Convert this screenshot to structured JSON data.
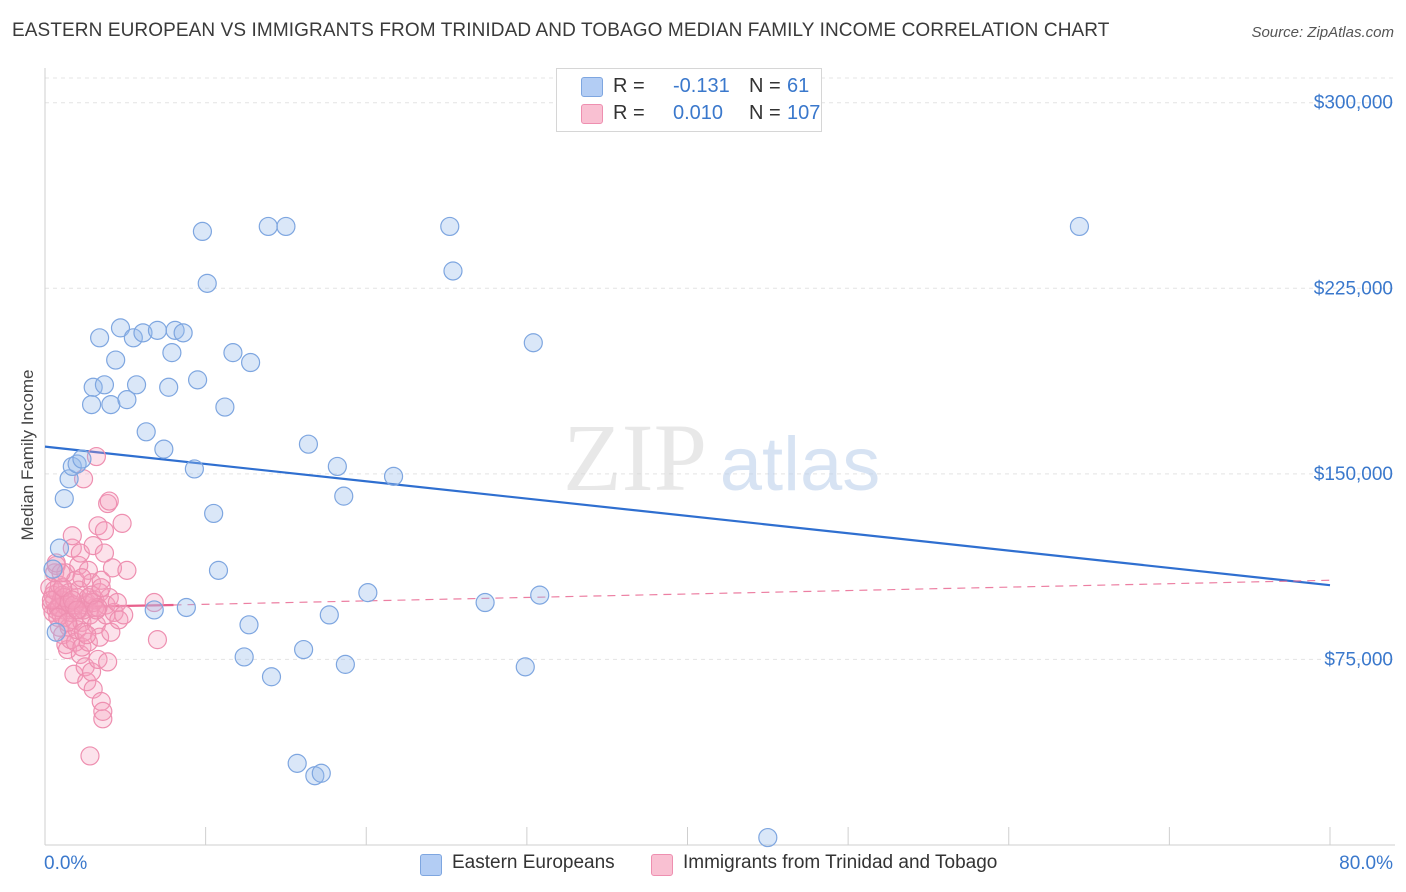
{
  "title": "EASTERN EUROPEAN VS IMMIGRANTS FROM TRINIDAD AND TOBAGO MEDIAN FAMILY INCOME CORRELATION CHART",
  "source": "Source: ZipAtlas.com",
  "watermark": {
    "zip": "ZIP",
    "atlas": "atlas"
  },
  "legend": {
    "r_label": "R =",
    "n_label": "N =",
    "rows": [
      {
        "r": "-0.131",
        "n": "61",
        "swatch": "#b3cdf4",
        "value_color": "#3a78cc"
      },
      {
        "r": "0.010",
        "n": "107",
        "swatch": "#f9c0d2",
        "value_color": "#3a78cc"
      }
    ]
  },
  "bottom_legend": [
    {
      "label": "Eastern Europeans",
      "swatch": "#b3cdf4"
    },
    {
      "label": "Immigrants from Trinidad and Tobago",
      "swatch": "#f9c0d2"
    }
  ],
  "colors": {
    "blue_fill": "rgba(150,185,235,0.35)",
    "blue_stroke": "#7ea6e0",
    "blue_line": "#2f6fd0",
    "pink_fill": "rgba(245,160,190,0.30)",
    "pink_stroke": "#ee8fb0",
    "pink_line": "#e8608c",
    "axis_text": "#3a78cc",
    "grid": "#e4e4e4"
  },
  "chart_data": {
    "type": "scatter",
    "title": "EASTERN EUROPEAN VS IMMIGRANTS FROM TRINIDAD AND TOBAGO MEDIAN FAMILY INCOME CORRELATION CHART",
    "xlabel": "",
    "ylabel": "Median Family Income",
    "xlim": [
      0,
      80
    ],
    "ylim": [
      0,
      310000
    ],
    "x_tick_labels": [
      "0.0%",
      "80.0%"
    ],
    "y_ticks": [
      75000,
      150000,
      225000,
      300000
    ],
    "y_tick_labels": [
      "$75,000",
      "$150,000",
      "$225,000",
      "$300,000"
    ],
    "grid": true,
    "legend_position": "top-center",
    "series": [
      {
        "name": "Eastern Europeans",
        "r": -0.131,
        "n": 61,
        "trend": {
          "x": [
            0,
            80
          ],
          "y": [
            161000,
            105000
          ],
          "style": "solid"
        },
        "points": [
          [
            0.5,
            111500
          ],
          [
            0.7,
            86000
          ],
          [
            0.9,
            120000
          ],
          [
            1.2,
            140000
          ],
          [
            1.5,
            148000
          ],
          [
            1.7,
            153000
          ],
          [
            2.0,
            154000
          ],
          [
            2.3,
            156000
          ],
          [
            2.9,
            178000
          ],
          [
            3.0,
            185000
          ],
          [
            3.4,
            205000
          ],
          [
            3.7,
            186000
          ],
          [
            4.1,
            178000
          ],
          [
            4.4,
            196000
          ],
          [
            4.7,
            209000
          ],
          [
            5.1,
            180000
          ],
          [
            5.5,
            205000
          ],
          [
            5.7,
            186000
          ],
          [
            6.1,
            207000
          ],
          [
            6.3,
            167000
          ],
          [
            6.8,
            95000
          ],
          [
            7.0,
            208000
          ],
          [
            7.4,
            160000
          ],
          [
            7.7,
            185000
          ],
          [
            7.9,
            199000
          ],
          [
            8.1,
            208000
          ],
          [
            8.6,
            207000
          ],
          [
            8.8,
            96000
          ],
          [
            9.3,
            152000
          ],
          [
            9.5,
            188000
          ],
          [
            9.8,
            248000
          ],
          [
            10.1,
            227000
          ],
          [
            10.5,
            134000
          ],
          [
            10.8,
            111000
          ],
          [
            11.2,
            177000
          ],
          [
            11.7,
            199000
          ],
          [
            12.4,
            76000
          ],
          [
            12.7,
            89000
          ],
          [
            12.8,
            195000
          ],
          [
            13.9,
            250000
          ],
          [
            14.1,
            68000
          ],
          [
            15.0,
            250000
          ],
          [
            15.7,
            33000
          ],
          [
            16.1,
            79000
          ],
          [
            16.4,
            162000
          ],
          [
            16.8,
            28000
          ],
          [
            17.2,
            29000
          ],
          [
            17.7,
            93000
          ],
          [
            18.2,
            153000
          ],
          [
            18.6,
            141000
          ],
          [
            18.7,
            73000
          ],
          [
            20.1,
            102000
          ],
          [
            21.7,
            149000
          ],
          [
            25.2,
            250000
          ],
          [
            25.4,
            232000
          ],
          [
            27.4,
            98000
          ],
          [
            29.9,
            72000
          ],
          [
            30.4,
            203000
          ],
          [
            30.8,
            101000
          ],
          [
            45.0,
            3000
          ],
          [
            64.4,
            250000
          ]
        ]
      },
      {
        "name": "Immigrants from Trinidad and Tobago",
        "r": 0.01,
        "n": 107,
        "trend": {
          "x": [
            0,
            8
          ],
          "y": [
            96000,
            97000
          ],
          "style": "solid",
          "extended": {
            "x": [
              8,
              80
            ],
            "y": [
              97000,
              107000
            ],
            "style": "dashed"
          }
        },
        "points": [
          [
            0.3,
            104000
          ],
          [
            0.4,
            97000
          ],
          [
            0.5,
            101000
          ],
          [
            0.5,
            94000
          ],
          [
            0.6,
            110000
          ],
          [
            0.6,
            99000
          ],
          [
            0.7,
            95000
          ],
          [
            0.7,
            113000
          ],
          [
            0.8,
            102000
          ],
          [
            0.8,
            96000
          ],
          [
            0.9,
            88000
          ],
          [
            0.9,
            105000
          ],
          [
            1.0,
            93000
          ],
          [
            1.0,
            99000
          ],
          [
            1.1,
            85000
          ],
          [
            1.1,
            101000
          ],
          [
            1.2,
            97000
          ],
          [
            1.2,
            92000
          ],
          [
            1.3,
            81000
          ],
          [
            1.3,
            110000
          ],
          [
            1.4,
            96000
          ],
          [
            1.4,
            79000
          ],
          [
            1.5,
            102000
          ],
          [
            1.5,
            88000
          ],
          [
            1.6,
            94000
          ],
          [
            1.6,
            83000
          ],
          [
            1.7,
            120000
          ],
          [
            1.7,
            125000
          ],
          [
            1.8,
            91000
          ],
          [
            1.8,
            69000
          ],
          [
            1.9,
            107000
          ],
          [
            1.9,
            82000
          ],
          [
            2.0,
            100000
          ],
          [
            2.0,
            87000
          ],
          [
            2.1,
            95000
          ],
          [
            2.1,
            113000
          ],
          [
            2.2,
            77000
          ],
          [
            2.2,
            118000
          ],
          [
            2.3,
            90000
          ],
          [
            2.3,
            80000
          ],
          [
            2.4,
            148000
          ],
          [
            2.4,
            86000
          ],
          [
            2.5,
            97000
          ],
          [
            2.5,
            72000
          ],
          [
            2.6,
            66000
          ],
          [
            2.6,
            98000
          ],
          [
            2.7,
            82000
          ],
          [
            2.7,
            111000
          ],
          [
            2.8,
            36000
          ],
          [
            2.8,
            93000
          ],
          [
            2.9,
            70000
          ],
          [
            2.9,
            106000
          ],
          [
            3.0,
            121000
          ],
          [
            3.0,
            63000
          ],
          [
            3.1,
            96000
          ],
          [
            3.1,
            99000
          ],
          [
            3.2,
            157000
          ],
          [
            3.2,
            89000
          ],
          [
            3.3,
            129000
          ],
          [
            3.3,
            75000
          ],
          [
            3.4,
            102000
          ],
          [
            3.4,
            84000
          ],
          [
            3.5,
            107000
          ],
          [
            3.5,
            58000
          ],
          [
            3.6,
            51000
          ],
          [
            3.6,
            54000
          ],
          [
            3.7,
            118000
          ],
          [
            3.7,
            127000
          ],
          [
            3.8,
            93000
          ],
          [
            3.8,
            97000
          ],
          [
            3.9,
            138000
          ],
          [
            3.9,
            74000
          ],
          [
            4.0,
            139000
          ],
          [
            4.0,
            100000
          ],
          [
            4.1,
            86000
          ],
          [
            4.2,
            112000
          ],
          [
            4.3,
            94000
          ],
          [
            4.5,
            98000
          ],
          [
            4.6,
            91000
          ],
          [
            4.8,
            130000
          ],
          [
            4.9,
            93000
          ],
          [
            5.1,
            111000
          ],
          [
            6.8,
            98000
          ],
          [
            7.0,
            83000
          ],
          [
            0.6,
            103000
          ],
          [
            0.9,
            96000
          ],
          [
            1.2,
            100000
          ],
          [
            1.5,
            98000
          ],
          [
            1.8,
            97000
          ],
          [
            2.1,
            103000
          ],
          [
            2.4,
            95000
          ],
          [
            2.7,
            100000
          ],
          [
            3.0,
            98000
          ],
          [
            3.3,
            96000
          ],
          [
            0.4,
            99000
          ],
          [
            0.8,
            92000
          ],
          [
            1.1,
            104000
          ],
          [
            1.4,
            90000
          ],
          [
            1.7,
            99000
          ],
          [
            2.0,
            95000
          ],
          [
            2.3,
            108000
          ],
          [
            2.6,
            85000
          ],
          [
            2.9,
            101000
          ],
          [
            3.2,
            95000
          ],
          [
            3.5,
            104000
          ],
          [
            1.0,
            110000
          ],
          [
            0.7,
            114000
          ]
        ]
      }
    ]
  }
}
